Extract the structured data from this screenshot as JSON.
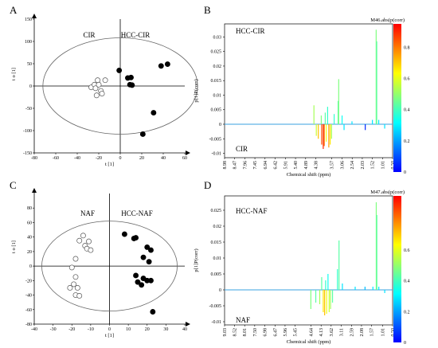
{
  "colors": {
    "axis": "#000000",
    "ellipse": "#666666",
    "filled_marker": "#000000",
    "open_marker": "#ffffff",
    "colormap": [
      "#0000ff",
      "#0080ff",
      "#00ffff",
      "#80ff80",
      "#ffff00",
      "#ff8000",
      "#ff0000"
    ]
  },
  "chart_data": [
    {
      "type": "scatter",
      "panel": "A",
      "title": "",
      "xlabel": "t [1]",
      "ylabel": "t o [1]",
      "xlim": [
        -80,
        60
      ],
      "ylim": [
        -150,
        150
      ],
      "xticks": [
        -80,
        -60,
        -40,
        -20,
        0,
        20,
        40,
        60
      ],
      "yticks": [
        -150,
        -100,
        -50,
        0,
        50,
        100,
        150
      ],
      "group_labels": [
        "CIR",
        "HCC-CIR"
      ],
      "ellipse": {
        "rx": 72,
        "ry": 108
      },
      "series": [
        {
          "name": "CIR",
          "marker": "open",
          "points": [
            [
              -27,
              -3
            ],
            [
              -24,
              3
            ],
            [
              -21,
              13
            ],
            [
              -23,
              -5
            ],
            [
              -20,
              3
            ],
            [
              -18,
              -11
            ],
            [
              -17,
              -17
            ],
            [
              -14,
              13
            ],
            [
              -22,
              -21
            ]
          ]
        },
        {
          "name": "HCC-CIR",
          "marker": "filled",
          "points": [
            [
              -1,
              35
            ],
            [
              7,
              18
            ],
            [
              10,
              19
            ],
            [
              9,
              3
            ],
            [
              11,
              2
            ],
            [
              31,
              -60
            ],
            [
              38,
              45
            ],
            [
              44,
              49
            ],
            [
              21,
              -108
            ]
          ]
        }
      ]
    },
    {
      "type": "spectrum",
      "panel": "B",
      "title": "",
      "xlabel": "Chemical shift (ppm)",
      "ylabel": "p[1]P(corr)",
      "colorbar_title": "M46.abs(p(corr)",
      "colorbar_ticks": [
        "0",
        "0.2",
        "0.4",
        "0.6",
        "0.8"
      ],
      "xticks": [
        "8.98",
        "8.47",
        "7.96",
        "7.45",
        "6.94",
        "6.42",
        "5.91",
        "5.40",
        "4.89",
        "4.38",
        "3.57",
        "3.06",
        "2.54",
        "2.03",
        "1.52",
        "1.01",
        "0.50"
      ],
      "yticks": [
        "-0.01",
        "-0.005",
        "0",
        "0.005",
        "0.01",
        "0.015",
        "0.02",
        "0.025",
        "0.03"
      ],
      "ylim": [
        -0.0115,
        0.0345
      ],
      "group_labels": [
        "HCC-CIR",
        "CIR"
      ],
      "peaks": [
        {
          "ppm": 4.47,
          "value": 0.0065,
          "corr": 0.55
        },
        {
          "ppm": 4.35,
          "value": -0.004,
          "corr": 0.6
        },
        {
          "ppm": 4.25,
          "value": -0.005,
          "corr": 0.75
        },
        {
          "ppm": 4.1,
          "value": 0.003,
          "corr": 0.5
        },
        {
          "ppm": 4.08,
          "value": -0.007,
          "corr": 0.9
        },
        {
          "ppm": 4.0,
          "value": -0.0085,
          "corr": 0.95
        },
        {
          "ppm": 3.95,
          "value": -0.0075,
          "corr": 0.85
        },
        {
          "ppm": 3.9,
          "value": 0.004,
          "corr": 0.45
        },
        {
          "ppm": 3.85,
          "value": -0.006,
          "corr": 0.65
        },
        {
          "ppm": 3.78,
          "value": 0.006,
          "corr": 0.4
        },
        {
          "ppm": 3.72,
          "value": -0.008,
          "corr": 0.8
        },
        {
          "ppm": 3.65,
          "value": -0.007,
          "corr": 0.7
        },
        {
          "ppm": 3.58,
          "value": -0.005,
          "corr": 0.55
        },
        {
          "ppm": 3.45,
          "value": 0.0035,
          "corr": 0.4
        },
        {
          "ppm": 3.25,
          "value": 0.008,
          "corr": 0.45
        },
        {
          "ppm": 3.22,
          "value": 0.0155,
          "corr": 0.5
        },
        {
          "ppm": 3.05,
          "value": 0.003,
          "corr": 0.35
        },
        {
          "ppm": 2.95,
          "value": -0.002,
          "corr": 0.3
        },
        {
          "ppm": 2.55,
          "value": 0.001,
          "corr": 0.3
        },
        {
          "ppm": 1.88,
          "value": -0.002,
          "corr": 0.05
        },
        {
          "ppm": 1.52,
          "value": 0.0015,
          "corr": 0.3
        },
        {
          "ppm": 1.33,
          "value": 0.0325,
          "corr": 0.5
        },
        {
          "ppm": 1.3,
          "value": 0.0285,
          "corr": 0.45
        },
        {
          "ppm": 1.2,
          "value": 0.0015,
          "corr": 0.3
        },
        {
          "ppm": 0.9,
          "value": -0.0015,
          "corr": 0.3
        }
      ]
    },
    {
      "type": "scatter",
      "panel": "C",
      "title": "",
      "xlabel": "t [1]",
      "ylabel": "t o [1]",
      "xlim": [
        -40,
        40
      ],
      "ylim": [
        -80,
        100
      ],
      "xticks": [
        -40,
        -30,
        -20,
        -10,
        0,
        10,
        20,
        30,
        40
      ],
      "yticks": [
        -80,
        -60,
        -40,
        -20,
        0,
        20,
        40,
        60,
        80
      ],
      "group_labels": [
        "NAF",
        "HCC-NAF"
      ],
      "ellipse": {
        "rx": 36,
        "ry": 62
      },
      "series": [
        {
          "name": "NAF",
          "marker": "open",
          "points": [
            [
              -14,
              42
            ],
            [
              -16,
              35
            ],
            [
              -13,
              28
            ],
            [
              -11,
              34
            ],
            [
              -12,
              24
            ],
            [
              -10,
              22
            ],
            [
              -18,
              10
            ],
            [
              -20,
              -2
            ],
            [
              -18,
              -15
            ],
            [
              -19,
              -25
            ],
            [
              -17,
              -30
            ],
            [
              -21,
              -30
            ],
            [
              -18,
              -40
            ],
            [
              -16,
              -41
            ]
          ]
        },
        {
          "name": "HCC-NAF",
          "marker": "filled",
          "points": [
            [
              8,
              44
            ],
            [
              13,
              38
            ],
            [
              14,
              39
            ],
            [
              20,
              26
            ],
            [
              18,
              12
            ],
            [
              22,
              22
            ],
            [
              21,
              6
            ],
            [
              14,
              -13
            ],
            [
              18,
              -17
            ],
            [
              15,
              -22
            ],
            [
              20,
              -20
            ],
            [
              22,
              -20
            ],
            [
              17,
              -26
            ],
            [
              23,
              -63
            ]
          ]
        }
      ]
    },
    {
      "type": "spectrum",
      "panel": "D",
      "title": "",
      "xlabel": "Chemical shift (ppm)",
      "ylabel": "p[1]P(corr)",
      "colorbar_title": "M47.abs(p(corr)",
      "colorbar_ticks": [
        "0",
        "0.2",
        "0.4",
        "0.6"
      ],
      "xticks": [
        "9.03",
        "8.52",
        "8.01",
        "7.50",
        "6.98",
        "6.47",
        "5.96",
        "5.45",
        "4.64",
        "4.13",
        "3.62",
        "3.11",
        "2.59",
        "2.08",
        "1.57",
        "1.01",
        "0.50"
      ],
      "yticks": [
        "-0.01",
        "-0.005",
        "0",
        "0.005",
        "0.01",
        "0.015",
        "0.02",
        "0.025"
      ],
      "ylim": [
        -0.011,
        0.0295
      ],
      "group_labels": [
        "HCC-NAF",
        "NAF"
      ],
      "peaks": [
        {
          "ppm": 4.65,
          "value": -0.006,
          "corr": 0.5
        },
        {
          "ppm": 4.4,
          "value": -0.004,
          "corr": 0.45
        },
        {
          "ppm": 4.2,
          "value": -0.0045,
          "corr": 0.55
        },
        {
          "ppm": 4.1,
          "value": 0.004,
          "corr": 0.45
        },
        {
          "ppm": 4.02,
          "value": -0.007,
          "corr": 0.7
        },
        {
          "ppm": 3.95,
          "value": -0.008,
          "corr": 0.75
        },
        {
          "ppm": 3.9,
          "value": 0.003,
          "corr": 0.4
        },
        {
          "ppm": 3.85,
          "value": -0.0075,
          "corr": 0.65
        },
        {
          "ppm": 3.78,
          "value": 0.005,
          "corr": 0.35
        },
        {
          "ppm": 3.72,
          "value": -0.007,
          "corr": 0.6
        },
        {
          "ppm": 3.65,
          "value": -0.006,
          "corr": 0.55
        },
        {
          "ppm": 3.55,
          "value": -0.004,
          "corr": 0.45
        },
        {
          "ppm": 3.3,
          "value": 0.0065,
          "corr": 0.4
        },
        {
          "ppm": 3.22,
          "value": 0.0155,
          "corr": 0.45
        },
        {
          "ppm": 3.05,
          "value": 0.002,
          "corr": 0.3
        },
        {
          "ppm": 2.4,
          "value": 0.001,
          "corr": 0.3
        },
        {
          "ppm": 1.9,
          "value": 0.001,
          "corr": 0.25
        },
        {
          "ppm": 1.5,
          "value": 0.001,
          "corr": 0.3
        },
        {
          "ppm": 1.33,
          "value": 0.0275,
          "corr": 0.5
        },
        {
          "ppm": 1.3,
          "value": 0.0235,
          "corr": 0.45
        },
        {
          "ppm": 1.2,
          "value": 0.001,
          "corr": 0.3
        },
        {
          "ppm": 0.9,
          "value": -0.001,
          "corr": 0.3
        }
      ]
    }
  ]
}
